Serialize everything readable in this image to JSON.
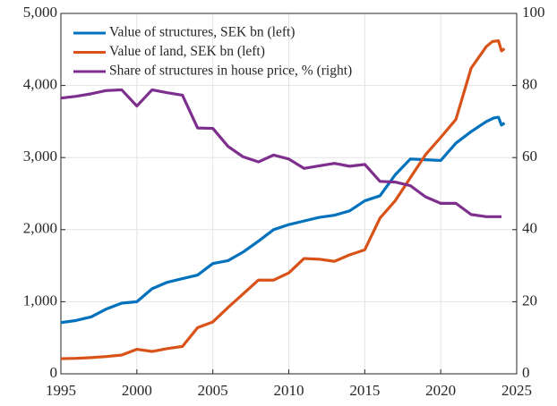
{
  "chart_data": {
    "type": "line",
    "xlim": [
      1995,
      2025
    ],
    "xticks": [
      1995,
      2000,
      2005,
      2010,
      2015,
      2020,
      2025
    ],
    "ylim": [
      0,
      5000
    ],
    "yticks": [
      0,
      {
        "value": 1000,
        "label": "1,000"
      },
      {
        "value": 2000,
        "label": "2,000"
      },
      {
        "value": 3000,
        "label": "3,000"
      },
      {
        "value": 4000,
        "label": "4,000"
      },
      {
        "value": 5000,
        "label": "5,000"
      }
    ],
    "y2lim": [
      0,
      100
    ],
    "y2ticks": [
      0,
      20,
      40,
      60,
      80,
      100
    ],
    "grid": true,
    "legend": "upper left",
    "series": [
      {
        "name": "Value of structures, SEK bn (left)",
        "color": "#0072BD",
        "x": [
          1995,
          1996,
          1997,
          1998,
          1999,
          2000,
          2001,
          2002,
          2003,
          2004,
          2005,
          2006,
          2007,
          2008,
          2009,
          2010,
          2011,
          2012,
          2013,
          2014,
          2015,
          2016,
          2017,
          2018,
          2019,
          2020,
          2021,
          2022,
          2023,
          2023.5,
          2023.8,
          2024,
          2024.2
        ],
        "values": [
          710,
          740,
          790,
          900,
          980,
          1000,
          1180,
          1270,
          1320,
          1370,
          1530,
          1570,
          1690,
          1840,
          2000,
          2070,
          2120,
          2170,
          2200,
          2260,
          2400,
          2470,
          2760,
          2980,
          2970,
          2960,
          3200,
          3360,
          3500,
          3550,
          3560,
          3450,
          3480
        ]
      },
      {
        "name": "Value of land, SEK bn (left)",
        "color": "#D95319",
        "x": [
          1995,
          1996,
          1997,
          1998,
          1999,
          2000,
          2001,
          2002,
          2003,
          2004,
          2005,
          2006,
          2007,
          2008,
          2009,
          2010,
          2011,
          2012,
          2013,
          2014,
          2015,
          2016,
          2017,
          2018,
          2019,
          2020,
          2021,
          2022,
          2023,
          2023.4,
          2023.8,
          2024,
          2024.2
        ],
        "values": [
          210,
          215,
          225,
          240,
          260,
          340,
          310,
          350,
          380,
          640,
          720,
          920,
          1110,
          1300,
          1300,
          1400,
          1600,
          1590,
          1560,
          1650,
          1720,
          2160,
          2400,
          2720,
          3040,
          3280,
          3530,
          4240,
          4540,
          4610,
          4620,
          4480,
          4510
        ]
      },
      {
        "name": "Share of structures in house price, % (right)",
        "color": "#7E2F8E",
        "axis": "y2",
        "x": [
          1995,
          1996,
          1997,
          1998,
          1999,
          2000,
          2001,
          2002,
          2003,
          2004,
          2005,
          2006,
          2007,
          2008,
          2009,
          2010,
          2011,
          2012,
          2013,
          2014,
          2015,
          2016,
          2017,
          2018,
          2019,
          2020,
          2021,
          2022,
          2023,
          2024
        ],
        "values": [
          76.5,
          77,
          77.7,
          78.6,
          78.8,
          74.3,
          78.8,
          78,
          77.3,
          68.2,
          68.1,
          63.1,
          60.2,
          58.8,
          60.7,
          59.6,
          57,
          57.7,
          58.4,
          57.6,
          58.1,
          53.4,
          53.2,
          52.2,
          49.1,
          47.3,
          47.3,
          44.2,
          43.6,
          43.6
        ]
      }
    ]
  }
}
